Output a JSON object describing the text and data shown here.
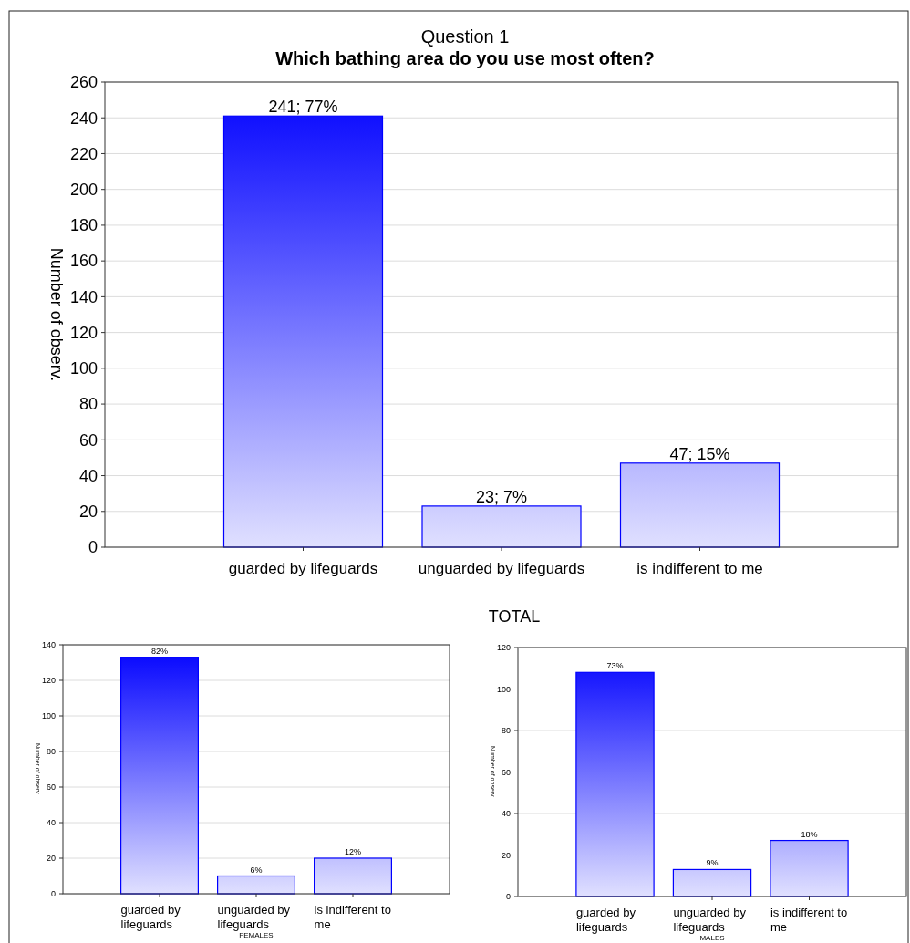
{
  "chart_data": [
    {
      "type": "bar",
      "title": "Question 1",
      "subtitle": "Which bathing area do you use most often?",
      "xlabel": "TOTAL",
      "ylabel": "Number of observ.",
      "categories": [
        "guarded by lifeguards",
        "unguarded by lifeguards",
        "is indifferent to me"
      ],
      "values": [
        241,
        23,
        47
      ],
      "value_labels": [
        "241; 77%",
        "23; 7%",
        "47; 15%"
      ],
      "color": "#0000ff",
      "ylim": [
        0,
        260
      ],
      "yticks": [
        0,
        20,
        40,
        60,
        80,
        100,
        120,
        140,
        160,
        180,
        200,
        220,
        240,
        260
      ],
      "grid": "y"
    },
    {
      "type": "bar",
      "xlabel": "FEMALES",
      "ylabel": "Number of observ.",
      "categories": [
        "guarded by lifeguards",
        "unguarded by lifeguards",
        "is indifferent to me"
      ],
      "values": [
        133,
        10,
        20
      ],
      "annotations": [
        {
          "text": "82%",
          "x": "guarded by lifeguards",
          "y": 133
        },
        {
          "text": "6%",
          "x": "unguarded by lifeguards",
          "y": 10
        },
        {
          "text": "12%",
          "x": "is indifferent to me",
          "y": 20
        }
      ],
      "color": "#0000ff",
      "ylim": [
        0,
        140
      ],
      "yticks": [
        0,
        20,
        40,
        60,
        80,
        100,
        120,
        140
      ],
      "grid": "y"
    },
    {
      "type": "bar",
      "xlabel": "MALES",
      "ylabel": "Number of observ.",
      "categories": [
        "guarded by lifeguards",
        "unguarded by lifeguards",
        "is indifferent to me"
      ],
      "values": [
        108,
        13,
        27
      ],
      "annotations": [
        {
          "text": "73%",
          "x": "guarded by lifeguards",
          "y": 108
        },
        {
          "text": "9%",
          "x": "unguarded by lifeguards",
          "y": 13
        },
        {
          "text": "18%",
          "x": "is indifferent to me",
          "y": 27
        }
      ],
      "color": "#0000ff",
      "ylim": [
        0,
        120
      ],
      "yticks": [
        0,
        20,
        40,
        60,
        80,
        100,
        120
      ],
      "grid": "y"
    }
  ]
}
